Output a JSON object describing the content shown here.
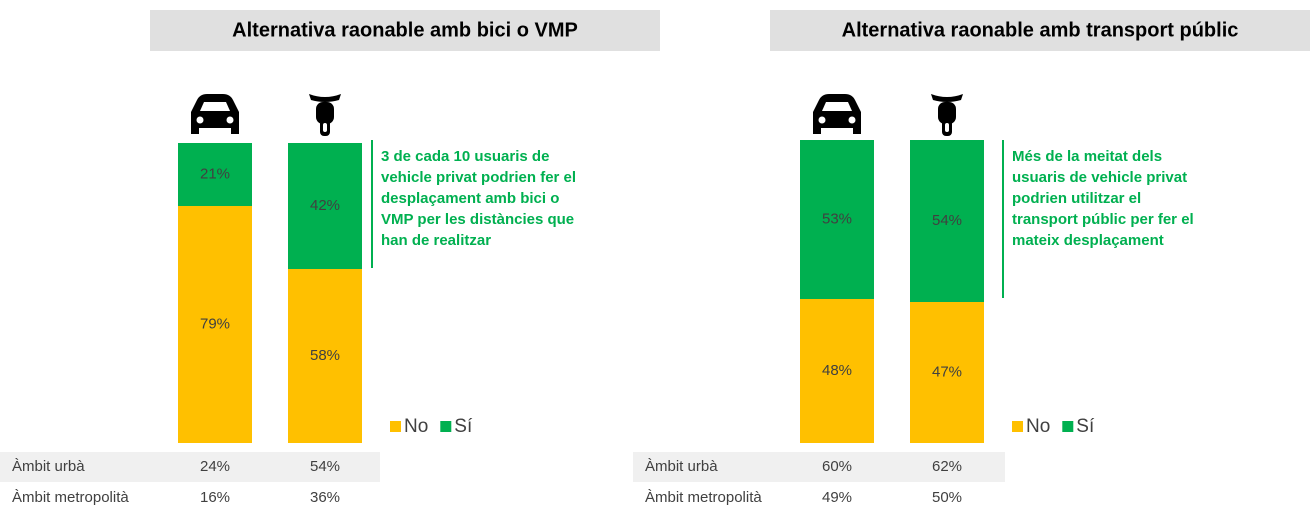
{
  "chart_data": [
    {
      "type": "bar",
      "stacked": true,
      "title": "Alternativa raonable amb bici o VMP",
      "categories": [
        null,
        null
      ],
      "series": [
        {
          "name": "No",
          "color": "#FFC000",
          "values": [
            79,
            58
          ],
          "value_labels": [
            "79%",
            "58%"
          ]
        },
        {
          "name": "Sí",
          "color": "#00B050",
          "values": [
            21,
            42
          ],
          "value_labels": [
            "21%",
            "42%"
          ]
        }
      ],
      "ylim": [
        0,
        100
      ],
      "annotation": [
        "3 de cada 10 usuaris de",
        "vehicle privat podrien fer el",
        "desplaçament amb bici o",
        "VMP per les distàncies que",
        "han de realitzar"
      ],
      "table": {
        "rows": [
          [
            "Àmbit urbà",
            "24%",
            "54%"
          ],
          [
            "Àmbit metropolità",
            "16%",
            "36%"
          ]
        ]
      }
    },
    {
      "type": "bar",
      "stacked": true,
      "title": "Alternativa raonable amb transport públic",
      "categories": [
        null,
        null
      ],
      "series": [
        {
          "name": "No",
          "color": "#FFC000",
          "values": [
            48,
            47
          ],
          "value_labels": [
            "48%",
            "47%"
          ]
        },
        {
          "name": "Sí",
          "color": "#00B050",
          "values": [
            53,
            54
          ],
          "value_labels": [
            "53%",
            "54%"
          ]
        }
      ],
      "ylim": [
        0,
        100
      ],
      "annotation": [
        "Més de la meitat dels",
        "usuaris de vehicle privat",
        "podrien utilitzar el",
        "transport públic per fer el",
        "mateix desplaçament"
      ],
      "table": {
        "rows": [
          [
            "Àmbit urbà",
            "60%",
            "62%"
          ],
          [
            "Àmbit metropolità",
            "49%",
            "50%"
          ]
        ]
      }
    }
  ]
}
